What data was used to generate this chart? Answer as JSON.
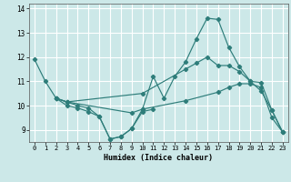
{
  "xlabel": "Humidex (Indice chaleur)",
  "background_color": "#cce8e8",
  "grid_color": "#ffffff",
  "line_color": "#2e7d7a",
  "xlim": [
    -0.5,
    23.5
  ],
  "ylim": [
    8.5,
    14.2
  ],
  "yticks": [
    9,
    10,
    11,
    12,
    13,
    14
  ],
  "xticks": [
    0,
    1,
    2,
    3,
    4,
    5,
    6,
    7,
    8,
    9,
    10,
    11,
    12,
    13,
    14,
    15,
    16,
    17,
    18,
    19,
    20,
    21,
    22,
    23
  ],
  "lines": [
    {
      "x": [
        0,
        1,
        2,
        3,
        4,
        5,
        6,
        7,
        8,
        9,
        10,
        11,
        12,
        13,
        14,
        15,
        16,
        17,
        18,
        19,
        20,
        21,
        22,
        23
      ],
      "y": [
        11.9,
        11.0,
        10.3,
        10.15,
        10.0,
        9.9,
        9.55,
        8.62,
        8.72,
        9.05,
        9.85,
        11.2,
        10.3,
        11.2,
        11.8,
        12.75,
        13.6,
        13.55,
        12.4,
        11.6,
        11.0,
        10.6,
        9.8,
        8.9
      ]
    },
    {
      "x": [
        2,
        3,
        10,
        14,
        15,
        16,
        17,
        18,
        19,
        20,
        21,
        22,
        23
      ],
      "y": [
        10.3,
        10.15,
        10.5,
        11.5,
        11.75,
        12.0,
        11.65,
        11.65,
        11.4,
        11.0,
        10.95,
        9.8,
        8.9
      ]
    },
    {
      "x": [
        2,
        3,
        9,
        10,
        14,
        17,
        18,
        19,
        20,
        21,
        22,
        23
      ],
      "y": [
        10.3,
        10.15,
        9.7,
        9.85,
        10.2,
        10.55,
        10.75,
        10.9,
        10.9,
        10.75,
        9.5,
        8.9
      ]
    },
    {
      "x": [
        2,
        3,
        4,
        5,
        6,
        7,
        8,
        9,
        10,
        11
      ],
      "y": [
        10.3,
        10.0,
        9.9,
        9.75,
        9.55,
        8.62,
        8.72,
        9.05,
        9.75,
        9.85
      ]
    }
  ]
}
